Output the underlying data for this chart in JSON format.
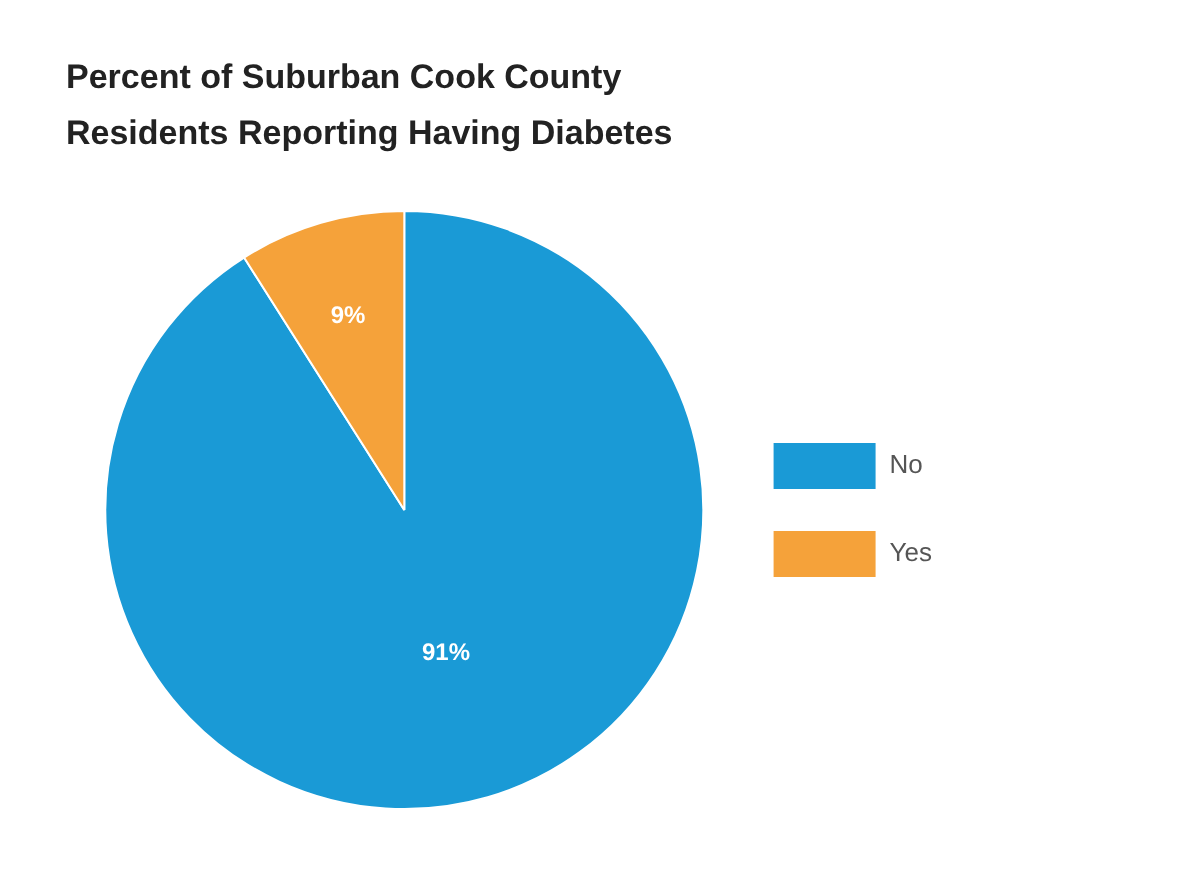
{
  "chart_data": {
    "type": "pie",
    "title": "Percent of Suburban Cook County Residents Reporting Having Diabetes",
    "categories": [
      "No",
      "Yes"
    ],
    "values": [
      91,
      9
    ],
    "colors": [
      "#1a9ad6",
      "#f5a23a"
    ],
    "value_labels": [
      "91%",
      "9%"
    ],
    "legend": "right"
  }
}
